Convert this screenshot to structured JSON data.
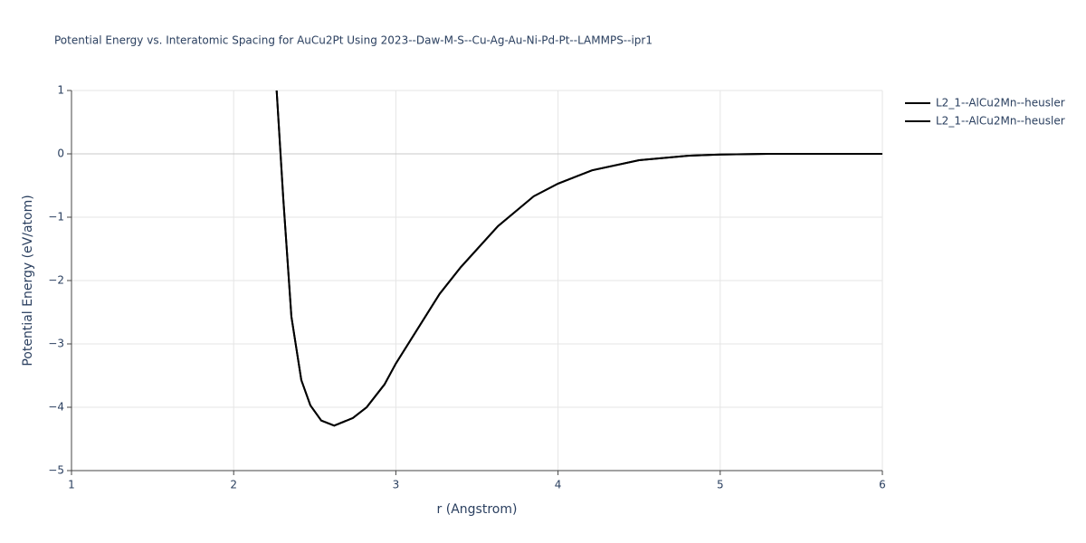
{
  "chart_data": {
    "type": "line",
    "title": "Potential Energy vs. Interatomic Spacing for AuCu2Pt Using 2023--Daw-M-S--Cu-Ag-Au-Ni-Pd-Pt--LAMMPS--ipr1",
    "x_label": "r (Angstrom)",
    "y_label": "Potential Energy (eV/atom)",
    "x": [
      2.265,
      2.306,
      2.356,
      2.417,
      2.473,
      2.54,
      2.62,
      2.735,
      2.82,
      2.93,
      3.0,
      3.27,
      3.4,
      3.63,
      3.85,
      4.0,
      4.21,
      4.5,
      4.8,
      5.0,
      5.3,
      6.0
    ],
    "series": [
      {
        "name": "L2_1--AlCu2Mn--heusler",
        "color": "#000000",
        "values": [
          1,
          -0.71,
          -2.57,
          -3.57,
          -3.97,
          -4.21,
          -4.29,
          -4.17,
          -4.0,
          -3.64,
          -3.31,
          -2.21,
          -1.79,
          -1.14,
          -0.67,
          -0.47,
          -0.26,
          -0.1,
          -0.03,
          -0.01,
          0,
          0
        ]
      },
      {
        "name": "L2_1--AlCu2Mn--heusler",
        "color": "#000000",
        "values": [
          1,
          -0.71,
          -2.57,
          -3.57,
          -3.97,
          -4.21,
          -4.29,
          -4.17,
          -4.0,
          -3.64,
          -3.31,
          -2.21,
          -1.79,
          -1.14,
          -0.67,
          -0.47,
          -0.26,
          -0.1,
          -0.03,
          -0.01,
          0,
          0
        ]
      }
    ],
    "xlim": [
      1,
      6
    ],
    "xticks": [
      1,
      2,
      3,
      4,
      5,
      6
    ],
    "ylim": [
      -5,
      1
    ],
    "yticks": [
      {
        "value": -5,
        "label": "−5"
      },
      {
        "value": -4,
        "label": "−4"
      },
      {
        "value": -3,
        "label": "−3"
      },
      {
        "value": -2,
        "label": "−2"
      },
      {
        "value": -1,
        "label": "−1"
      },
      0,
      1
    ],
    "grid": true,
    "legend": "top-right"
  }
}
